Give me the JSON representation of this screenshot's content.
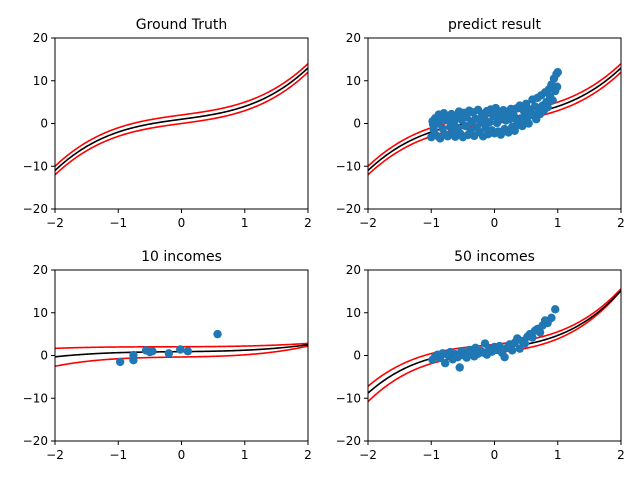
{
  "chart_data": [
    {
      "type": "line",
      "title": "Ground Truth",
      "xlim": [
        -2,
        2
      ],
      "ylim": [
        -20,
        20
      ],
      "xticks": [
        -2,
        -1,
        0,
        1,
        2
      ],
      "yticks": [
        -20,
        -10,
        0,
        10,
        20
      ],
      "xtick_labels": [
        "−2",
        "−1",
        "0",
        "1",
        "2"
      ],
      "ytick_labels": [
        "−20",
        "−10",
        "0",
        "10",
        "20"
      ],
      "curves": {
        "mean": {
          "coeffs": [
            1,
            0,
            2,
            1
          ],
          "color": "#000000"
        },
        "upper": {
          "coeffs": [
            1,
            0,
            2,
            2
          ],
          "color": "#ff0000"
        },
        "lower": {
          "coeffs": [
            1,
            0,
            2,
            0
          ],
          "color": "#ff0000"
        }
      },
      "points": []
    },
    {
      "type": "scatter",
      "title": "predict result",
      "xlim": [
        -2,
        2
      ],
      "ylim": [
        -20,
        20
      ],
      "xticks": [
        -2,
        -1,
        0,
        1,
        2
      ],
      "yticks": [
        -20,
        -10,
        0,
        10,
        20
      ],
      "xtick_labels": [
        "−2",
        "−1",
        "0",
        "1",
        "2"
      ],
      "ytick_labels": [
        "−20",
        "−10",
        "0",
        "10",
        "20"
      ],
      "curves": {
        "mean": {
          "coeffs": [
            1,
            0,
            2,
            1
          ],
          "color": "#000000"
        },
        "upper": {
          "coeffs": [
            1,
            0,
            2,
            2
          ],
          "color": "#ff0000"
        },
        "lower": {
          "coeffs": [
            1,
            0,
            2,
            0
          ],
          "color": "#ff0000"
        }
      },
      "point_color": "#1f77b4",
      "points": [
        [
          -1.0,
          -3.2
        ],
        [
          -0.98,
          0.5
        ],
        [
          -0.96,
          -1.5
        ],
        [
          -0.94,
          1.2
        ],
        [
          -0.92,
          -2.8
        ],
        [
          -0.9,
          0.0
        ],
        [
          -0.88,
          2.1
        ],
        [
          -0.86,
          -3.5
        ],
        [
          -0.84,
          1.0
        ],
        [
          -0.82,
          -1.2
        ],
        [
          -0.8,
          2.4
        ],
        [
          -0.78,
          -2.6
        ],
        [
          -0.76,
          0.8
        ],
        [
          -0.74,
          -3.0
        ],
        [
          -0.72,
          1.6
        ],
        [
          -0.7,
          -0.8
        ],
        [
          -0.68,
          2.2
        ],
        [
          -0.66,
          -2.2
        ],
        [
          -0.64,
          0.4
        ],
        [
          -0.62,
          -3.1
        ],
        [
          -0.6,
          1.9
        ],
        [
          -0.58,
          -1.0
        ],
        [
          -0.56,
          2.8
        ],
        [
          -0.54,
          -2.4
        ],
        [
          -0.52,
          0.9
        ],
        [
          -0.5,
          -3.2
        ],
        [
          -0.48,
          2.5
        ],
        [
          -0.46,
          -0.6
        ],
        [
          -0.44,
          1.4
        ],
        [
          -0.42,
          -2.7
        ],
        [
          -0.4,
          3.0
        ],
        [
          -0.38,
          -1.8
        ],
        [
          -0.36,
          0.2
        ],
        [
          -0.34,
          2.6
        ],
        [
          -0.32,
          -2.9
        ],
        [
          -0.3,
          1.1
        ],
        [
          -0.28,
          -0.9
        ],
        [
          -0.26,
          3.2
        ],
        [
          -0.24,
          -2.0
        ],
        [
          -0.22,
          0.6
        ],
        [
          -0.2,
          2.3
        ],
        [
          -0.18,
          -3.0
        ],
        [
          -0.16,
          1.5
        ],
        [
          -0.14,
          -1.1
        ],
        [
          -0.12,
          2.9
        ],
        [
          -0.1,
          -2.5
        ],
        [
          -0.08,
          0.3
        ],
        [
          -0.06,
          3.3
        ],
        [
          -0.04,
          -1.6
        ],
        [
          -0.02,
          1.8
        ],
        [
          0.0,
          -2.3
        ],
        [
          0.02,
          3.6
        ],
        [
          0.04,
          0.1
        ],
        [
          0.06,
          -1.9
        ],
        [
          0.08,
          2.7
        ],
        [
          0.1,
          -2.6
        ],
        [
          0.12,
          1.3
        ],
        [
          0.14,
          3.1
        ],
        [
          0.16,
          -1.3
        ],
        [
          0.18,
          0.7
        ],
        [
          0.2,
          2.5
        ],
        [
          0.22,
          -2.1
        ],
        [
          0.24,
          1.0
        ],
        [
          0.26,
          3.4
        ],
        [
          0.28,
          -0.8
        ],
        [
          0.3,
          2.0
        ],
        [
          0.32,
          -1.7
        ],
        [
          0.34,
          3.5
        ],
        [
          0.36,
          0.5
        ],
        [
          0.38,
          -0.4
        ],
        [
          0.4,
          4.2
        ],
        [
          0.42,
          1.2
        ],
        [
          0.44,
          -0.6
        ],
        [
          0.46,
          3.0
        ],
        [
          0.48,
          0.8
        ],
        [
          0.5,
          4.6
        ],
        [
          0.52,
          1.6
        ],
        [
          0.54,
          0.0
        ],
        [
          0.56,
          3.3
        ],
        [
          0.58,
          2.3
        ],
        [
          0.6,
          5.6
        ],
        [
          0.62,
          2.0
        ],
        [
          0.64,
          4.0
        ],
        [
          0.66,
          1.0
        ],
        [
          0.68,
          6.0
        ],
        [
          0.7,
          3.2
        ],
        [
          0.72,
          2.2
        ],
        [
          0.74,
          6.6
        ],
        [
          0.76,
          4.2
        ],
        [
          0.78,
          3.0
        ],
        [
          0.8,
          7.3
        ],
        [
          0.82,
          5.0
        ],
        [
          0.84,
          3.8
        ],
        [
          0.86,
          8.0
        ],
        [
          0.88,
          6.2
        ],
        [
          0.9,
          9.1
        ],
        [
          0.92,
          5.4
        ],
        [
          0.94,
          10.5
        ],
        [
          0.96,
          7.6
        ],
        [
          0.98,
          11.6
        ],
        [
          1.0,
          12.0
        ],
        [
          0.99,
          8.6
        ],
        [
          -0.97,
          -0.2
        ],
        [
          -0.85,
          0.9
        ],
        [
          -0.45,
          1.7
        ],
        [
          0.05,
          1.2
        ],
        [
          0.35,
          0.9
        ],
        [
          -0.15,
          -0.3
        ],
        [
          -0.65,
          -1.4
        ],
        [
          0.55,
          1.8
        ]
      ]
    },
    {
      "type": "scatter",
      "title": "10 incomes",
      "xlim": [
        -2,
        2
      ],
      "ylim": [
        -20,
        20
      ],
      "xticks": [
        -2,
        -1,
        0,
        1,
        2
      ],
      "yticks": [
        -20,
        -10,
        0,
        10,
        20
      ],
      "xtick_labels": [
        "−2",
        "−1",
        "0",
        "1",
        "2"
      ],
      "ytick_labels": [
        "−20",
        "−10",
        "0",
        "10",
        "20"
      ],
      "curves": {
        "mean": {
          "coeffs": [
            0.14,
            0.05,
            0.15,
            0.9
          ],
          "color": "#000000"
        },
        "upper": {
          "coeffs": [
            0.06,
            0.05,
            0.05,
            2.05
          ],
          "color": "#ff0000"
        },
        "lower": {
          "coeffs": [
            0.24,
            0.05,
            0.22,
            -0.35
          ],
          "color": "#ff0000"
        }
      },
      "point_color": "#1f77b4",
      "points": [
        [
          -0.97,
          -1.5
        ],
        [
          -0.76,
          0.1
        ],
        [
          -0.76,
          -1.1
        ],
        [
          -0.56,
          1.2
        ],
        [
          -0.5,
          0.8
        ],
        [
          -0.46,
          1.0
        ],
        [
          -0.2,
          0.5
        ],
        [
          -0.02,
          1.4
        ],
        [
          0.1,
          1.0
        ],
        [
          0.57,
          5.0
        ]
      ]
    },
    {
      "type": "scatter",
      "title": "50 incomes",
      "xlim": [
        -2,
        2
      ],
      "ylim": [
        -20,
        20
      ],
      "xticks": [
        -2,
        -1,
        0,
        1,
        2
      ],
      "yticks": [
        -20,
        -10,
        0,
        10,
        20
      ],
      "xtick_labels": [
        "−2",
        "−1",
        "0",
        "1",
        "2"
      ],
      "ytick_labels": [
        "−20",
        "−10",
        "0",
        "10",
        "20"
      ],
      "curves": {
        "mean": {
          "coeffs": [
            1.1,
            0.4,
            1.6,
            1.6
          ],
          "color": "#000000"
        },
        "upper": {
          "coeffs": [
            1.05,
            0.4,
            1.5,
            2.6
          ],
          "color": "#ff0000"
        },
        "lower": {
          "coeffs": [
            1.2,
            0.4,
            1.7,
            0.6
          ],
          "color": "#ff0000"
        }
      },
      "point_color": "#1f77b4",
      "points": [
        [
          -0.98,
          -1.0
        ],
        [
          -0.94,
          -0.3
        ],
        [
          -0.9,
          0.2
        ],
        [
          -0.86,
          -0.6
        ],
        [
          -0.82,
          0.5
        ],
        [
          -0.78,
          -1.8
        ],
        [
          -0.74,
          0.1
        ],
        [
          -0.7,
          0.8
        ],
        [
          -0.66,
          -0.9
        ],
        [
          -0.62,
          0.3
        ],
        [
          -0.58,
          -0.4
        ],
        [
          -0.55,
          -2.8
        ],
        [
          -0.52,
          1.0
        ],
        [
          -0.48,
          0.0
        ],
        [
          -0.44,
          -0.5
        ],
        [
          -0.4,
          1.3
        ],
        [
          -0.36,
          0.6
        ],
        [
          -0.32,
          -0.2
        ],
        [
          -0.3,
          1.8
        ],
        [
          -0.26,
          0.4
        ],
        [
          -0.22,
          1.1
        ],
        [
          -0.18,
          0.7
        ],
        [
          -0.15,
          2.8
        ],
        [
          -0.12,
          0.2
        ],
        [
          -0.08,
          1.6
        ],
        [
          -0.04,
          0.9
        ],
        [
          0.0,
          2.0
        ],
        [
          0.04,
          1.3
        ],
        [
          0.08,
          2.2
        ],
        [
          0.12,
          0.6
        ],
        [
          0.16,
          -0.4
        ],
        [
          0.2,
          1.8
        ],
        [
          0.24,
          2.6
        ],
        [
          0.28,
          1.2
        ],
        [
          0.32,
          3.0
        ],
        [
          0.36,
          4.0
        ],
        [
          0.4,
          1.6
        ],
        [
          0.44,
          3.4
        ],
        [
          0.48,
          2.8
        ],
        [
          0.52,
          4.4
        ],
        [
          0.56,
          5.0
        ],
        [
          0.6,
          4.2
        ],
        [
          0.64,
          5.8
        ],
        [
          0.68,
          6.2
        ],
        [
          0.72,
          5.4
        ],
        [
          0.76,
          7.0
        ],
        [
          0.8,
          8.2
        ],
        [
          0.84,
          7.6
        ],
        [
          0.9,
          8.8
        ],
        [
          0.96,
          10.8
        ]
      ]
    }
  ]
}
